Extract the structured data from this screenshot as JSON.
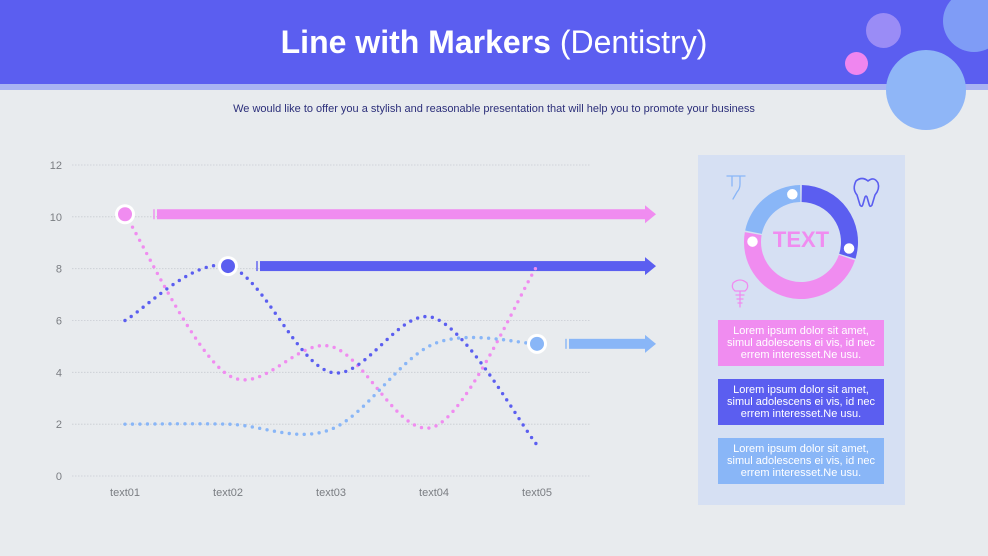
{
  "header": {
    "title_bold": "Line with Markers",
    "title_rest": " (Dentistry)",
    "subtitle": "We would like to offer you a stylish and reasonable presentation that will help you to promote your business"
  },
  "colors": {
    "header": "#5b5ef0",
    "pink": "#f08cf0",
    "blue": "#5b5ef0",
    "light_blue": "#89b6f7",
    "panel": "#d6e0f3"
  },
  "chart_data": {
    "type": "line",
    "categories": [
      "text01",
      "text02",
      "text03",
      "text04",
      "text05"
    ],
    "ylim": [
      0,
      12
    ],
    "yticks": [
      0,
      2,
      4,
      6,
      8,
      10,
      12
    ],
    "grid": true,
    "style": "dotted smooth lines",
    "series": [
      {
        "color": "#f08cf0",
        "values": [
          10.1,
          3.9,
          5.0,
          1.9,
          8.1
        ],
        "marker_index": 0
      },
      {
        "color": "#5b5ef0",
        "values": [
          6.0,
          8.1,
          4.0,
          6.1,
          1.2
        ],
        "marker_index": 1
      },
      {
        "color": "#89b6f7",
        "values": [
          2.0,
          2.0,
          1.8,
          5.1,
          5.1
        ],
        "marker_index": 4
      }
    ]
  },
  "panel": {
    "donut_label": "TEXT",
    "donut_segments": [
      {
        "color": "#5b5ef0",
        "value": 30
      },
      {
        "color": "#f08cf0",
        "value": 48
      },
      {
        "color": "#89b6f7",
        "value": 22
      }
    ],
    "icons": [
      "dental-drill-icon",
      "tooth-icon",
      "dental-implant-icon"
    ],
    "boxes": [
      {
        "text": "Lorem ipsum dolor sit amet, simul adolescens ei vis, id nec errem interesset.Ne usu.",
        "color": "#f08cf0"
      },
      {
        "text": "Lorem ipsum dolor sit amet, simul adolescens ei vis, id nec errem interesset.Ne usu.",
        "color": "#5b5ef0"
      },
      {
        "text": "Lorem ipsum dolor sit amet, simul adolescens ei vis, id nec errem interesset.Ne usu.",
        "color": "#89b6f7"
      }
    ]
  }
}
